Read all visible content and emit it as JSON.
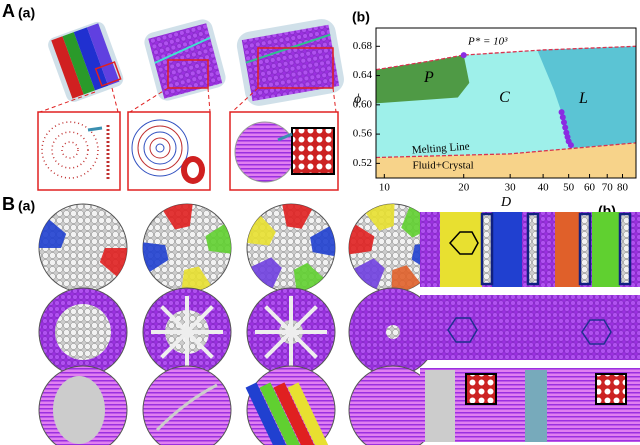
{
  "labels": {
    "A": "A",
    "A_a": "(a)",
    "A_b": "(b)",
    "B": "B",
    "B_a": "(a)",
    "B_b": "(b)"
  },
  "chart_data": {
    "type": "phase-diagram",
    "x_label": "D",
    "y_label": "ϕ",
    "x_scale": "log",
    "xlim": [
      9.3,
      90
    ],
    "ylim": [
      0.5,
      0.705
    ],
    "xticks": [
      10,
      20,
      30,
      40,
      50,
      60,
      70,
      80
    ],
    "yticks": [
      0.52,
      0.56,
      {
        "value": 0.6,
        "label": "0.60"
      },
      0.64,
      0.68
    ],
    "regions": [
      {
        "name": "C",
        "color": "#9ef0ea",
        "x": [
          9.3,
          9.3,
          15,
          20,
          40,
          90,
          90,
          50,
          30
        ],
        "y": [
          0.528,
          0.648,
          0.66,
          0.668,
          0.675,
          0.68,
          0.548,
          0.54,
          0.533
        ]
      },
      {
        "name": "P",
        "color": "#4f9a45",
        "x": [
          9.3,
          15,
          20,
          21,
          19,
          9.3
        ],
        "y": [
          0.648,
          0.66,
          0.668,
          0.63,
          0.61,
          0.602
        ]
      },
      {
        "name": "L",
        "color": "#5bc4d4",
        "x": [
          38,
          90,
          90,
          52,
          48,
          44
        ],
        "y": [
          0.675,
          0.68,
          0.548,
          0.541,
          0.58,
          0.62
        ]
      },
      {
        "name": "Fluid+Crystal",
        "color": "#f7d38a",
        "x": [
          9.3,
          9.3,
          30,
          50,
          90,
          90
        ],
        "y": [
          0.5,
          0.528,
          0.533,
          0.54,
          0.548,
          0.5
        ]
      }
    ],
    "boundaries": [
      {
        "color": "#d8344f",
        "x": [
          9.3,
          15,
          20,
          40,
          90
        ],
        "y": [
          0.648,
          0.66,
          0.668,
          0.675,
          0.68
        ]
      },
      {
        "color": "#d8344f",
        "x": [
          9.3,
          30,
          50,
          90
        ],
        "y": [
          0.528,
          0.533,
          0.54,
          0.548
        ]
      }
    ],
    "points": {
      "color": "#8a2be2",
      "x": [
        20,
        47,
        47.5,
        48,
        48.5,
        49,
        49.5,
        50,
        51
      ],
      "y": [
        0.668,
        0.59,
        0.583,
        0.576,
        0.569,
        0.562,
        0.556,
        0.55,
        0.545
      ]
    },
    "melting_line_label": "Melting Line",
    "pressure_label": "P* = 10³"
  }
}
